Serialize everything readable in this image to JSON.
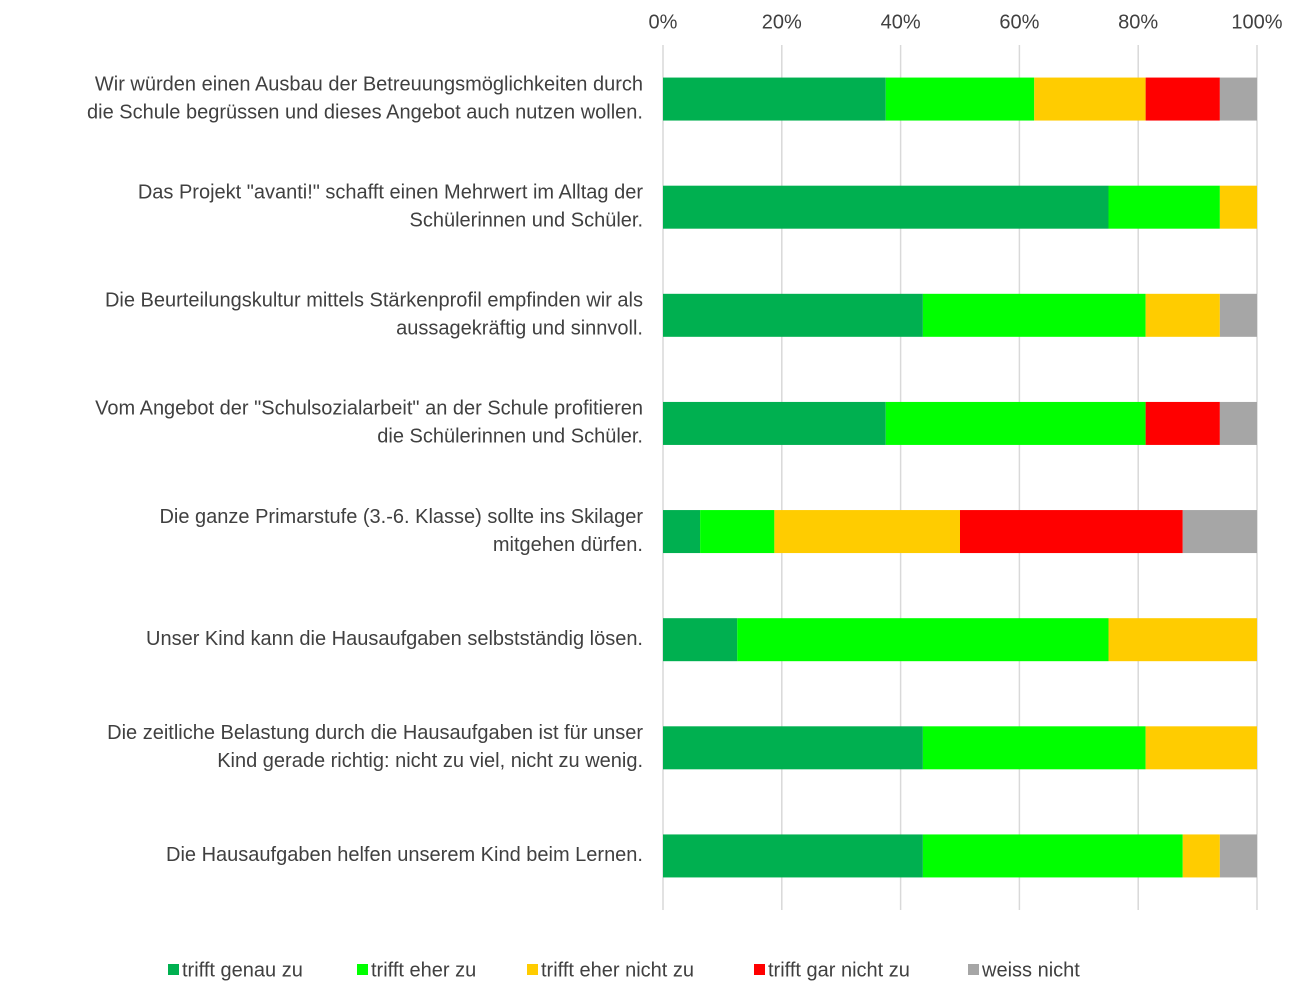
{
  "chart_data": {
    "type": "bar",
    "orientation": "horizontal",
    "stacked": true,
    "categories": [
      [
        "Wir würden einen Ausbau der Betreuungsmöglichkeiten durch",
        "die Schule begrüssen und dieses Angebot auch nutzen wollen."
      ],
      [
        "Das Projekt \"avanti!\" schafft einen Mehrwert im Alltag der",
        "Schülerinnen und Schüler."
      ],
      [
        "Die Beurteilungskultur mittels Stärkenprofil empfinden wir als",
        "aussagekräftig und sinnvoll."
      ],
      [
        "Vom Angebot der \"Schulsozialarbeit\" an der Schule profitieren",
        "die Schülerinnen und Schüler."
      ],
      [
        "Die ganze Primarstufe (3.-6. Klasse) sollte ins Skilager",
        "mitgehen dürfen."
      ],
      [
        "Unser Kind kann die Hausaufgaben selbstständig lösen."
      ],
      [
        "Die zeitliche Belastung durch die Hausaufgaben ist für unser",
        "Kind gerade richtig: nicht zu viel, nicht zu wenig."
      ],
      [
        "Die Hausaufgaben helfen unserem Kind beim Lernen."
      ]
    ],
    "series": [
      {
        "name": "trifft genau zu",
        "color": "#00b050",
        "values": [
          37.5,
          75,
          43.75,
          37.5,
          6.25,
          12.5,
          43.75,
          43.75
        ]
      },
      {
        "name": "trifft eher zu",
        "color": "#00ff00",
        "values": [
          25,
          18.75,
          37.5,
          43.75,
          12.5,
          62.5,
          37.5,
          43.75
        ]
      },
      {
        "name": "trifft eher nicht zu",
        "color": "#ffcc00",
        "values": [
          18.75,
          6.25,
          12.5,
          0,
          31.25,
          25,
          18.75,
          6.25
        ]
      },
      {
        "name": "trifft gar nicht zu",
        "color": "#ff0000",
        "values": [
          12.5,
          0,
          0,
          12.5,
          37.5,
          0,
          0,
          0
        ]
      },
      {
        "name": "weiss nicht",
        "color": "#a6a6a6",
        "values": [
          6.25,
          0,
          6.25,
          6.25,
          12.5,
          0,
          0,
          6.25
        ]
      }
    ],
    "xlim": [
      0,
      100
    ],
    "xticks": [
      {
        "value": 0,
        "label": "0%"
      },
      {
        "value": 20,
        "label": "20%"
      },
      {
        "value": 40,
        "label": "40%"
      },
      {
        "value": 60,
        "label": "60%"
      },
      {
        "value": 80,
        "label": "80%"
      },
      {
        "value": 100,
        "label": "100%"
      }
    ],
    "grid": true,
    "legend": "bottom"
  }
}
